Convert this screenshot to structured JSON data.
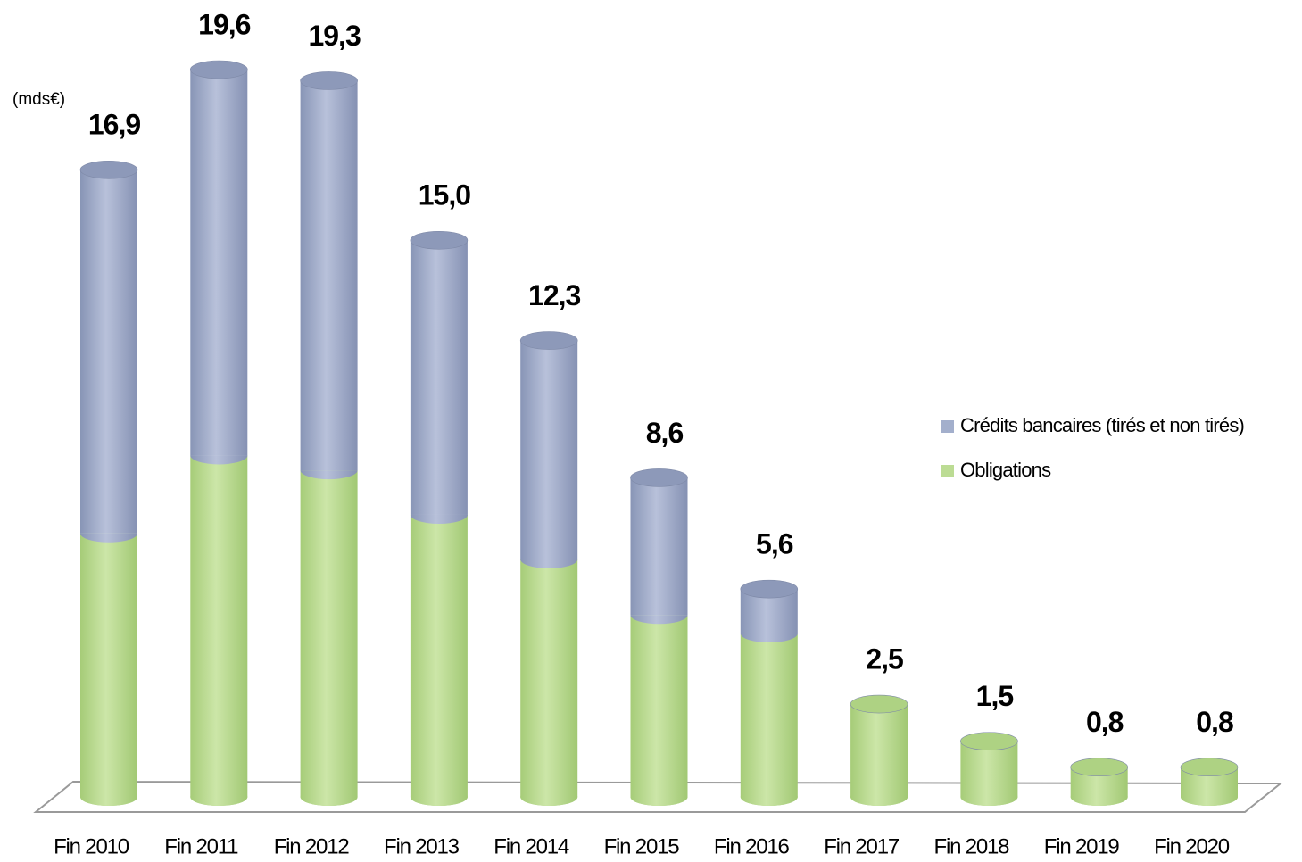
{
  "chart_data": {
    "type": "stacked-cylinder-bar",
    "unit_label": "(mds€)",
    "categories": [
      "Fin 2010",
      "Fin 2011",
      "Fin 2012",
      "Fin 2013",
      "Fin 2014",
      "Fin 2015",
      "Fin 2016",
      "Fin 2017",
      "Fin 2018",
      "Fin 2019",
      "Fin 2020"
    ],
    "series": [
      {
        "name": "Crédits bancaires (tirés et non tirés)",
        "color": "#a3afcc",
        "values": [
          9.8,
          10.4,
          10.5,
          7.4,
          5.9,
          3.7,
          1.2,
          0,
          0,
          0,
          0
        ]
      },
      {
        "name": "Obligations",
        "color": "#bcdc94",
        "values": [
          7.1,
          9.2,
          8.8,
          7.6,
          6.4,
          4.9,
          4.4,
          2.5,
          1.5,
          0.8,
          0.8
        ]
      }
    ],
    "totals": [
      16.9,
      19.6,
      19.3,
      15.0,
      12.3,
      8.6,
      5.6,
      2.5,
      1.5,
      0.8,
      0.8
    ],
    "value_labels": [
      "16,9",
      "19,6",
      "19,3",
      "15,0",
      "12,3",
      "8,6",
      "5,6",
      "2,5",
      "1,5",
      "0,8",
      "0,8"
    ],
    "legend": "right"
  }
}
